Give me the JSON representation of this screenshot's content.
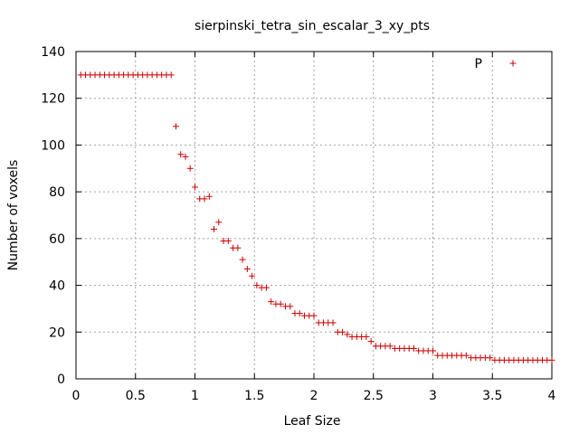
{
  "chart_data": {
    "type": "scatter",
    "title": "sierpinski_tetra_sin_escalar_3_xy_pts",
    "xlabel": "Leaf Size",
    "ylabel": "Number of voxels",
    "xlim": [
      0,
      4
    ],
    "ylim": [
      0,
      140
    ],
    "xticks": [
      0,
      0.5,
      1,
      1.5,
      2,
      2.5,
      3,
      3.5,
      4
    ],
    "xtick_labels": [
      "0",
      "0.5",
      "1",
      "1.5",
      "2",
      "2.5",
      "3",
      "3.5",
      "4"
    ],
    "yticks": [
      0,
      20,
      40,
      60,
      80,
      100,
      120,
      140
    ],
    "ytick_labels": [
      "0",
      "20",
      "40",
      "60",
      "80",
      "100",
      "120",
      "140"
    ],
    "grid": true,
    "legend": "top-right",
    "marker": "+",
    "series": [
      {
        "name": "P",
        "color": "#cc0000",
        "x": [
          0.04,
          0.08,
          0.12,
          0.16,
          0.2,
          0.24,
          0.28,
          0.32,
          0.36,
          0.4,
          0.44,
          0.48,
          0.52,
          0.56,
          0.6,
          0.64,
          0.68,
          0.72,
          0.76,
          0.8,
          0.84,
          0.88,
          0.92,
          0.96,
          1.0,
          1.04,
          1.08,
          1.12,
          1.16,
          1.2,
          1.24,
          1.28,
          1.32,
          1.36,
          1.4,
          1.44,
          1.48,
          1.52,
          1.56,
          1.6,
          1.64,
          1.68,
          1.72,
          1.76,
          1.8,
          1.84,
          1.88,
          1.92,
          1.96,
          2.0,
          2.04,
          2.08,
          2.12,
          2.16,
          2.2,
          2.24,
          2.28,
          2.32,
          2.36,
          2.4,
          2.44,
          2.48,
          2.52,
          2.56,
          2.6,
          2.64,
          2.68,
          2.72,
          2.76,
          2.8,
          2.84,
          2.88,
          2.92,
          2.96,
          3.0,
          3.04,
          3.08,
          3.12,
          3.16,
          3.2,
          3.24,
          3.28,
          3.32,
          3.36,
          3.4,
          3.44,
          3.48,
          3.52,
          3.56,
          3.6,
          3.64,
          3.68,
          3.72,
          3.76,
          3.8,
          3.84,
          3.88,
          3.92,
          3.96,
          4.0
        ],
        "y": [
          130,
          130,
          130,
          130,
          130,
          130,
          130,
          130,
          130,
          130,
          130,
          130,
          130,
          130,
          130,
          130,
          130,
          130,
          130,
          130,
          108,
          96,
          95,
          90,
          82,
          77,
          77,
          78,
          64,
          67,
          59,
          59,
          56,
          56,
          51,
          47,
          44,
          40,
          39,
          39,
          33,
          32,
          32,
          31,
          31,
          28,
          28,
          27,
          27,
          27,
          24,
          24,
          24,
          24,
          20,
          20,
          19,
          18,
          18,
          18,
          18,
          16,
          14,
          14,
          14,
          14,
          13,
          13,
          13,
          13,
          13,
          12,
          12,
          12,
          12,
          10,
          10,
          10,
          10,
          10,
          10,
          10,
          9,
          9,
          9,
          9,
          9,
          8,
          8,
          8,
          8,
          8,
          8,
          8,
          8,
          8,
          8,
          8,
          8,
          8
        ]
      }
    ]
  }
}
